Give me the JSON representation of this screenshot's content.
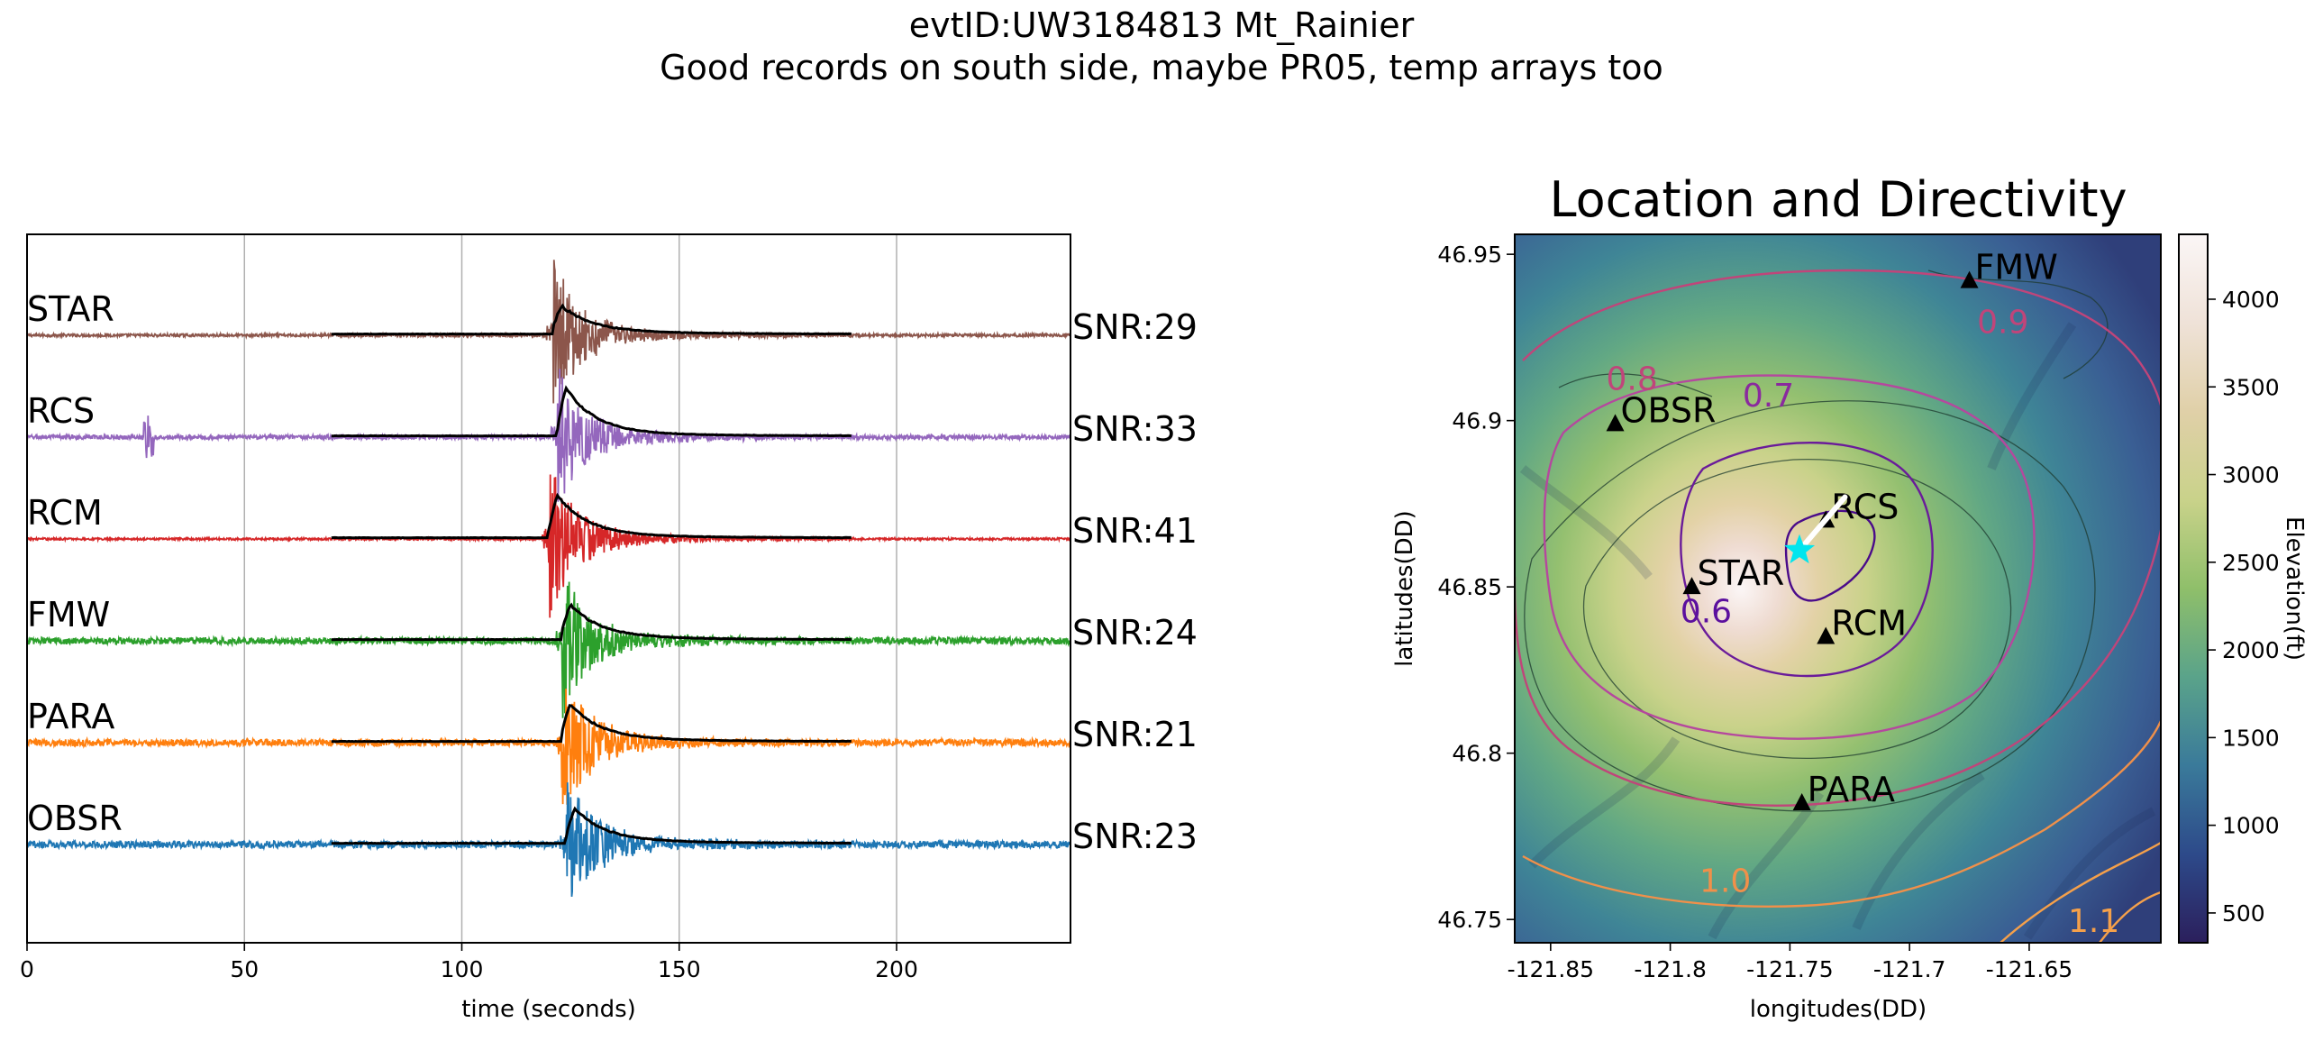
{
  "figure": {
    "title_line1": "evtID:UW3184813 Mt_Rainier",
    "title_line2": "Good records on south side, maybe PR05, temp arrays too"
  },
  "chart_data": [
    {
      "type": "line",
      "description": "Stacked seismogram traces with black envelopes",
      "xlabel": "time (seconds)",
      "ylabel": "",
      "xlim": [
        0,
        240
      ],
      "xticks": [
        0,
        50,
        100,
        150,
        200
      ],
      "grid": "vertical",
      "envelope_window": [
        70,
        190
      ],
      "series": [
        {
          "name": "STAR",
          "color": "#8c564b",
          "snr": "SNR:29",
          "onset": 121,
          "peak_amp": 1.0,
          "env_peak": 0.42,
          "noise": 0.02
        },
        {
          "name": "RCS",
          "color": "#9467bd",
          "snr": "SNR:33",
          "onset": 122,
          "peak_amp": 0.9,
          "env_peak": 0.8,
          "noise": 0.03,
          "spike_at": 28
        },
        {
          "name": "RCM",
          "color": "#d62728",
          "snr": "SNR:41",
          "onset": 120,
          "peak_amp": 1.0,
          "env_peak": 0.7,
          "noise": 0.015
        },
        {
          "name": "FMW",
          "color": "#2ca02c",
          "snr": "SNR:24",
          "onset": 123,
          "peak_amp": 0.95,
          "env_peak": 0.55,
          "noise": 0.05
        },
        {
          "name": "PARA",
          "color": "#ff7f0e",
          "snr": "SNR:21",
          "onset": 123,
          "peak_amp": 1.0,
          "env_peak": 0.6,
          "noise": 0.05
        },
        {
          "name": "OBSR",
          "color": "#1f77b4",
          "snr": "SNR:23",
          "onset": 124,
          "peak_amp": 1.0,
          "env_peak": 0.55,
          "noise": 0.05
        }
      ]
    },
    {
      "type": "heatmap",
      "title": "Location and Directivity",
      "xlabel": "longitudes(DD)",
      "ylabel": "latitudes(DD)",
      "xlim": [
        -121.865,
        -121.595
      ],
      "ylim": [
        46.743,
        46.956
      ],
      "xticks": [
        -121.85,
        -121.8,
        -121.75,
        -121.7,
        -121.65
      ],
      "xtick_labels": [
        "-121.85",
        "-121.8",
        "-121.75",
        "-121.7",
        "-121.65"
      ],
      "yticks": [
        46.75,
        46.8,
        46.85,
        46.9,
        46.95
      ],
      "ytick_labels": [
        "46.75",
        "46.8",
        "46.85",
        "46.9",
        "46.95"
      ],
      "colorbar": {
        "label": "Elevation(ft)",
        "range": [
          330,
          4370
        ],
        "ticks": [
          500,
          1000,
          1500,
          2000,
          2500,
          3000,
          3500,
          4000
        ],
        "tick_labels": [
          "500",
          "1000",
          "1500",
          "2000",
          "2500",
          "3000",
          "3500",
          "4000"
        ],
        "colors": [
          "#2b1f5c",
          "#2d4a8a",
          "#3a7a9a",
          "#5aa38a",
          "#8fbf6a",
          "#c9d28a",
          "#e0d0a8",
          "#efe2d8",
          "#fbf6f6"
        ]
      },
      "stations": [
        {
          "name": "FMW",
          "lon": -121.675,
          "lat": 46.942
        },
        {
          "name": "OBSR",
          "lon": -121.823,
          "lat": 46.899
        },
        {
          "name": "RCS",
          "lon": -121.735,
          "lat": 46.87
        },
        {
          "name": "STAR",
          "lon": -121.791,
          "lat": 46.85
        },
        {
          "name": "RCM",
          "lon": -121.735,
          "lat": 46.835
        },
        {
          "name": "PARA",
          "lon": -121.745,
          "lat": 46.785
        }
      ],
      "event": {
        "lon": -121.746,
        "lat": 46.861,
        "marker": "star",
        "color": "#00e5ee"
      },
      "directivity_arrow": {
        "from": [
          -121.746,
          46.861
        ],
        "to": [
          -121.727,
          46.877
        ],
        "color": "#ffffff"
      },
      "contours": [
        {
          "label": "0.6",
          "color": "#5b0f9e",
          "label_lon": -121.785,
          "label_lat": 46.842
        },
        {
          "label": "0.7",
          "color": "#8a2a9e",
          "label_lon": -121.759,
          "label_lat": 46.907
        },
        {
          "label": "0.8",
          "color": "#c0457a",
          "label_lon": -121.816,
          "label_lat": 46.912
        },
        {
          "label": "0.9",
          "color": "#c0457a",
          "label_lon": -121.661,
          "label_lat": 46.929
        },
        {
          "label": "1.0",
          "color": "#f0904a",
          "label_lon": -121.777,
          "label_lat": 46.761
        },
        {
          "label": "1.1",
          "color": "#f5a04a",
          "label_lon": -121.623,
          "label_lat": 46.749
        }
      ]
    }
  ]
}
